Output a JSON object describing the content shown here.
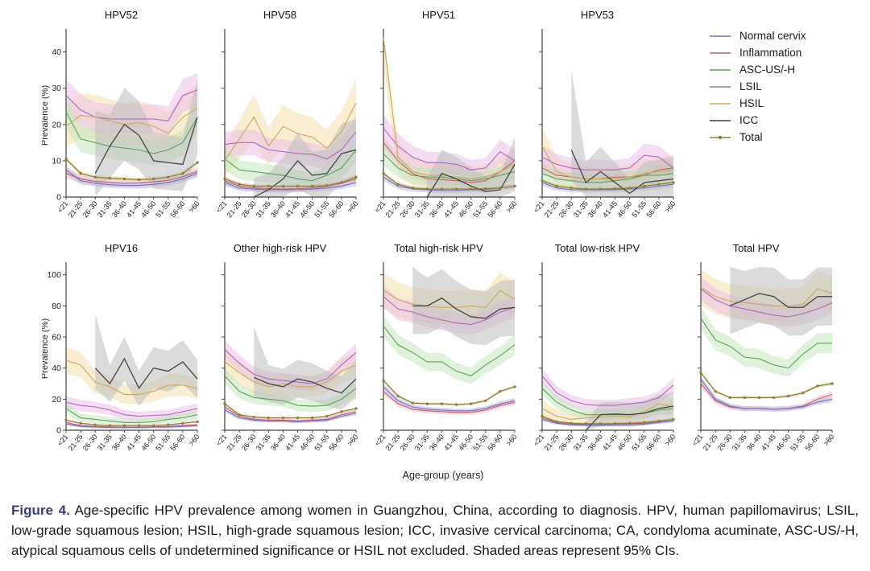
{
  "caption": {
    "label": "Figure 4.",
    "text": " Age-specific HPV prevalence among women in Guangzhou, China, according to diagnosis. HPV, human papillomavirus; LSIL, low-grade squamous lesion; HSIL, high-grade squamous lesion; ICC, invasive cervical carcinoma; CA, condyloma acuminate, ASC-US/-H, atypical squamous cells of undetermined significance or HSIL not excluded. Shaded areas represent 95% CIs."
  },
  "chart_data": {
    "type": "line",
    "xlabel": "Age-group (years)",
    "ylabel": "Prevalence (%)",
    "x_categories": [
      "<21",
      "21-25",
      "26-30",
      "31-35",
      "36-40",
      "41-45",
      "46-50",
      "51-55",
      "56-60",
      ">60"
    ],
    "legend_position": "top-right",
    "grid": false,
    "note": "Shaded areas represent 95% CIs",
    "series_defs": [
      {
        "id": "normal",
        "label": "Normal cervix",
        "color": "#7272be",
        "band": "#b9b9e0",
        "ci": [
          0.3,
          0.32
        ]
      },
      {
        "id": "inflammation",
        "label": "Inflammation",
        "color": "#c4606a",
        "band": "#f0bcc4",
        "ci": [
          0.4,
          0.35
        ]
      },
      {
        "id": "asc_us",
        "label": "ASC-US/-H",
        "color": "#5f9f5f",
        "band": "#c2e4ba",
        "ci": [
          0.5,
          0.8
        ]
      },
      {
        "id": "lsil",
        "label": "LSIL",
        "color": "#b066be",
        "band": "#e9bce5",
        "ci": [
          0.8,
          0.7
        ]
      },
      {
        "id": "hsil",
        "label": "HSIL",
        "color": "#c9a95f",
        "band": "#f3dca6",
        "ci": [
          1.0,
          1.1
        ]
      },
      {
        "id": "icc",
        "label": "ICC",
        "color": "#3f3f3f",
        "band": "#bdbdbd",
        "ci": [
          2.0,
          1.8
        ]
      },
      {
        "id": "total",
        "label": "Total",
        "color": "#8f7f3c",
        "band": "#d9cf9a",
        "ci": [
          0.2,
          0.15
        ]
      }
    ],
    "rows": [
      {
        "ylim": [
          0,
          45
        ],
        "yticks": [
          0,
          10,
          20,
          30,
          40
        ],
        "panels": [
          {
            "title": "HPV52",
            "show_y": true,
            "series": {
              "normal": [
                7.5,
                4.5,
                3.8,
                3.4,
                3.2,
                3.2,
                3.5,
                4,
                5,
                6.5
              ],
              "inflammation": [
                6.5,
                5,
                4.3,
                4,
                3.8,
                3.9,
                4.2,
                4.6,
                5.6,
                7
              ],
              "asc_us": [
                23.5,
                16,
                15,
                14,
                13.5,
                13,
                12,
                13,
                15,
                22
              ],
              "lsil": [
                28,
                24,
                22,
                21.5,
                21.5,
                21.5,
                21.5,
                21,
                28,
                29.5
              ],
              "hsil": [
                19.5,
                22.5,
                22,
                21,
                20,
                20.5,
                19.5,
                17.5,
                22,
                24.5
              ],
              "icc": [
                null,
                null,
                6.5,
                14,
                20,
                17,
                10,
                9.5,
                9,
                22
              ],
              "total": [
                10.5,
                6.5,
                5.5,
                5.2,
                5,
                4.8,
                5,
                5.5,
                6.5,
                9.5
              ]
            }
          },
          {
            "title": "HPV58",
            "show_y": false,
            "series": {
              "normal": [
                4,
                2.5,
                2.2,
                2,
                2,
                2,
                2.2,
                2.5,
                3,
                4
              ],
              "inflammation": [
                4.5,
                3,
                2.5,
                2.3,
                2.2,
                2.3,
                2.5,
                3,
                3.8,
                5
              ],
              "asc_us": [
                10.5,
                7.5,
                7,
                6.5,
                6,
                5,
                4.5,
                6,
                8,
                13
              ],
              "lsil": [
                14.5,
                15,
                15,
                13,
                12.5,
                12,
                11.8,
                10.5,
                13,
                18
              ],
              "hsil": [
                10,
                16,
                22,
                14,
                19.5,
                17.5,
                16.5,
                13.5,
                18,
                26
              ],
              "icc": [
                null,
                null,
                0,
                2,
                5,
                10,
                6,
                6.5,
                12,
                13
              ],
              "total": [
                5,
                3.5,
                3,
                3,
                3,
                3,
                3,
                3.2,
                4,
                5.5
              ]
            }
          },
          {
            "title": "HPV51",
            "show_y": false,
            "series": {
              "normal": [
                5.5,
                3,
                2.2,
                2,
                1.8,
                1.8,
                2,
                2,
                2.5,
                3
              ],
              "inflammation": [
                15,
                10,
                6.5,
                5,
                4.8,
                4.5,
                4,
                4.5,
                7,
                10
              ],
              "asc_us": [
                12,
                8,
                6,
                5.5,
                5.5,
                5,
                4.5,
                5,
                6,
                7
              ],
              "lsil": [
                19,
                14,
                11,
                9.5,
                9.5,
                9,
                7.5,
                8,
                12.5,
                10
              ],
              "hsil": [
                44,
                11,
                7,
                6,
                6,
                5.5,
                5,
                5.5,
                7,
                9
              ],
              "icc": [
                null,
                null,
                null,
                0,
                6.5,
                5,
                3,
                1.5,
                2,
                9
              ],
              "total": [
                6.5,
                3.5,
                2.5,
                2.2,
                2.2,
                2.2,
                2.2,
                2.3,
                2.5,
                3
              ]
            }
          },
          {
            "title": "HPV53",
            "show_y": false,
            "series": {
              "normal": [
                4,
                2.5,
                2,
                2,
                2,
                2,
                2.2,
                2.5,
                3,
                3.5
              ],
              "inflammation": [
                8,
                6,
                5.5,
                5,
                5,
                5.5,
                5.5,
                6,
                7.5,
                8
              ],
              "asc_us": [
                6.5,
                5,
                4.5,
                4,
                4,
                4.5,
                5,
                6,
                6,
                6.5
              ],
              "lsil": [
                11,
                9,
                8,
                7.5,
                7.5,
                7.5,
                8,
                11.5,
                11,
                8
              ],
              "hsil": [
                14,
                7,
                5.5,
                5,
                5,
                5,
                5.5,
                6.5,
                7,
                7.5
              ],
              "icc": [
                null,
                null,
                13,
                4,
                7,
                4,
                1,
                4,
                4.5,
                5
              ],
              "total": [
                4.5,
                3,
                2.5,
                2.2,
                2.2,
                2.3,
                2.5,
                3,
                3.5,
                4
              ]
            }
          }
        ]
      },
      {
        "ylim": [
          0,
          105
        ],
        "yticks": [
          0,
          20,
          40,
          60,
          80,
          100
        ],
        "panels": [
          {
            "title": "HPV16",
            "show_y": true,
            "series": {
              "normal": [
                4,
                2.5,
                2,
                1.8,
                1.8,
                1.8,
                2,
                2,
                2.5,
                3
              ],
              "inflammation": [
                5,
                3,
                2.5,
                2.2,
                2,
                2,
                2.2,
                2.5,
                3,
                3.5
              ],
              "asc_us": [
                14,
                8,
                7,
                6,
                5,
                5,
                5.5,
                7,
                8,
                10
              ],
              "lsil": [
                18,
                16,
                15,
                13,
                10,
                9,
                9.5,
                10,
                12,
                14
              ],
              "hsil": [
                45,
                42,
                31,
                28,
                23,
                23,
                25,
                29,
                29,
                27
              ],
              "icc": [
                null,
                null,
                40,
                30,
                46,
                27,
                40,
                38,
                44,
                33
              ],
              "total": [
                6.5,
                4.5,
                3.5,
                3,
                3,
                3,
                3,
                3.5,
                4.5,
                5.5
              ]
            }
          },
          {
            "title": "Other high-risk HPV",
            "show_y": false,
            "series": {
              "normal": [
                13,
                8,
                6.5,
                6,
                6,
                5.5,
                6,
                6.5,
                9,
                11
              ],
              "inflammation": [
                15,
                9,
                7,
                6.5,
                6.5,
                6,
                6.5,
                7,
                10,
                12
              ],
              "asc_us": [
                35,
                25,
                21,
                20,
                19,
                16,
                15.5,
                16,
                20,
                27
              ],
              "lsil": [
                52,
                43,
                36,
                33,
                32,
                31,
                30,
                33,
                42,
                50
              ],
              "hsil": [
                44,
                37,
                31,
                28,
                30,
                28,
                28,
                31,
                38,
                42
              ],
              "icc": [
                null,
                null,
                34,
                30,
                28,
                33,
                31,
                27,
                24,
                33
              ],
              "total": [
                17,
                10,
                8.5,
                8,
                8,
                8,
                8,
                9,
                12,
                14
              ]
            }
          },
          {
            "title": "Total high-risk HPV",
            "show_y": false,
            "series": {
              "normal": [
                28,
                19,
                15,
                13.5,
                13,
                12.5,
                12.5,
                14,
                17,
                19
              ],
              "inflammation": [
                25,
                17,
                13.5,
                12.5,
                12,
                11.5,
                11.5,
                13,
                16,
                18
              ],
              "asc_us": [
                67,
                55,
                50,
                44,
                44,
                38,
                35,
                42,
                48,
                55
              ],
              "lsil": [
                86,
                78,
                76,
                73,
                71,
                69,
                68,
                71,
                76,
                79
              ],
              "hsil": [
                90,
                84,
                81,
                80,
                79,
                79,
                80,
                79,
                90,
                84
              ],
              "icc": [
                null,
                null,
                80,
                80,
                85,
                78,
                73,
                72,
                78,
                79
              ],
              "total": [
                32,
                22,
                17.5,
                17,
                17,
                16.5,
                17,
                19,
                25,
                28
              ]
            }
          },
          {
            "title": "Total low-risk HPV",
            "show_y": false,
            "series": {
              "normal": [
                7,
                4.5,
                3.5,
                3.2,
                3.2,
                3.3,
                3.5,
                4,
                5,
                6
              ],
              "inflammation": [
                8,
                5,
                4,
                3.8,
                3.8,
                4,
                4.2,
                4.5,
                5.5,
                7
              ],
              "asc_us": [
                27,
                18,
                13,
                10,
                10,
                10,
                10,
                11,
                13,
                14
              ],
              "lsil": [
                35,
                24,
                19,
                16.5,
                16,
                16,
                17,
                18,
                21,
                29
              ],
              "hsil": [
                14,
                9,
                7,
                8,
                8.5,
                9,
                8.5,
                12,
                17,
                15
              ],
              "icc": [
                null,
                null,
                null,
                0,
                10,
                10.5,
                10,
                11,
                14,
                15.5
              ],
              "total": [
                9,
                5.5,
                4.5,
                4.2,
                4.2,
                4.3,
                4.5,
                5,
                6,
                7
              ]
            }
          },
          {
            "title": "Total HPV",
            "show_y": false,
            "series": {
              "normal": [
                33,
                20,
                15.5,
                14,
                14,
                13.5,
                14,
                15,
                18,
                20
              ],
              "inflammation": [
                30,
                19,
                15,
                14,
                14,
                13.5,
                14,
                15.5,
                20,
                23
              ],
              "asc_us": [
                72,
                58,
                54,
                47,
                46,
                42,
                40,
                49,
                56,
                56
              ],
              "lsil": [
                91,
                84,
                80,
                78,
                76,
                74,
                73,
                75,
                78,
                82
              ],
              "hsil": [
                92,
                86,
                83,
                82,
                81,
                80,
                80,
                81,
                91,
                88
              ],
              "icc": [
                null,
                null,
                80,
                84,
                88,
                86,
                79,
                79,
                86,
                86
              ],
              "total": [
                37,
                25,
                21,
                21,
                21,
                21,
                22,
                24,
                28.5,
                30
              ]
            }
          }
        ]
      }
    ]
  }
}
